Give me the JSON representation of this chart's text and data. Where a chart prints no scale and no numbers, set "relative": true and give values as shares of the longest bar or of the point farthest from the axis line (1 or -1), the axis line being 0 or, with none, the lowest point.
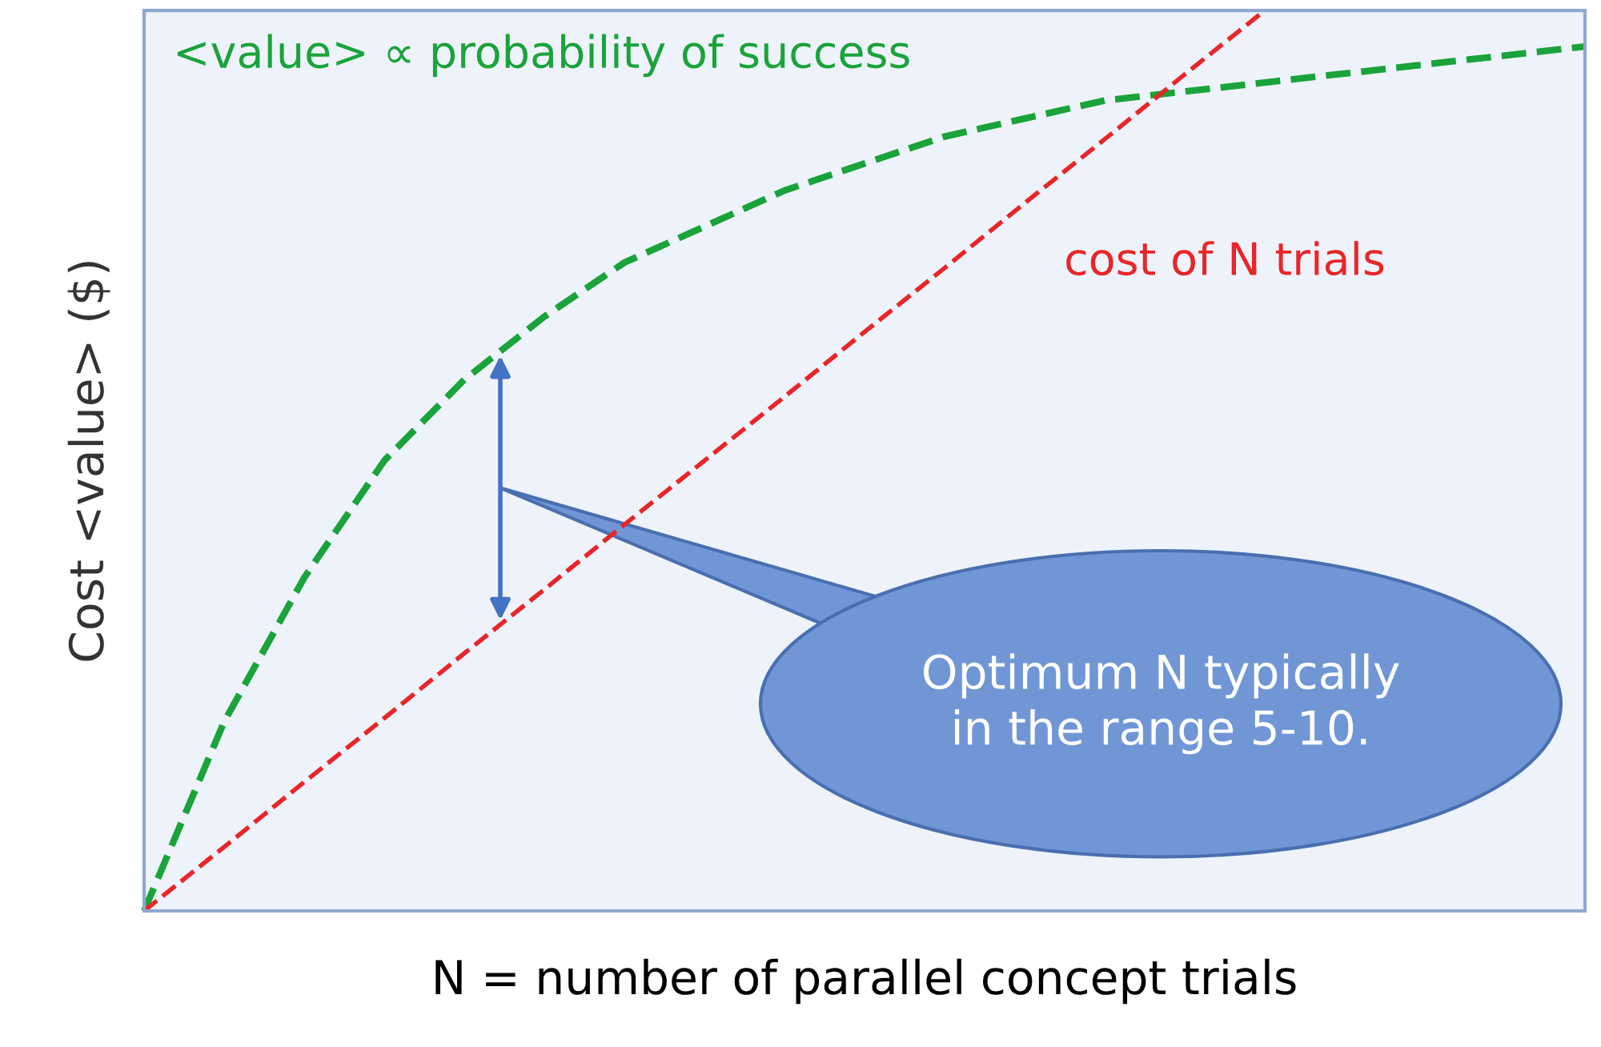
{
  "chart_data": {
    "type": "line",
    "relative": true,
    "xlabel": "N = number of parallel concept trials",
    "ylabel": "Cost <value> ($)",
    "categories": [
      null,
      null,
      null,
      null,
      null,
      null,
      null,
      null,
      null,
      null,
      null,
      null,
      null,
      null,
      null,
      null,
      null,
      null,
      null
    ],
    "series": [
      {
        "name": "<value> ∝ probability of success",
        "color": "#1aa33a",
        "values": [
          0,
          0.21,
          0.37,
          0.5,
          0.59,
          0.66,
          0.72,
          0.76,
          0.8,
          0.83,
          0.86,
          0.88,
          0.9,
          0.91,
          0.92,
          0.93,
          0.94,
          0.95,
          0.96
        ]
      },
      {
        "name": "cost of N trials",
        "color": "#e8262a",
        "values": [
          0,
          0.071,
          0.143,
          0.214,
          0.286,
          0.357,
          0.429,
          0.5,
          0.571,
          0.643,
          0.714,
          0.786,
          0.857,
          0.929,
          1,
          null,
          null,
          null,
          null
        ]
      }
    ],
    "annotations": [
      "Optimum N typically in the range 5-10."
    ],
    "line_style": "dashed",
    "marker": "none",
    "legend": false,
    "grid": false
  }
}
